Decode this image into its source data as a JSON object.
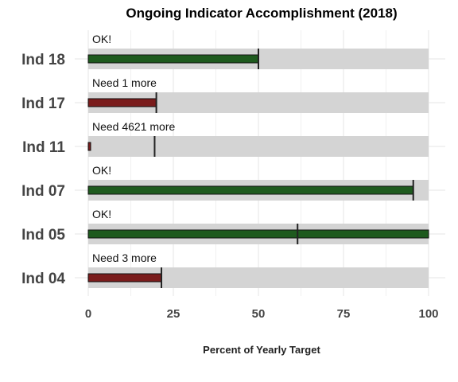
{
  "chart_data": {
    "type": "bar",
    "title": "Ongoing Indicator Accomplishment (2018)",
    "xlabel": "Percent of Yearly Target",
    "ylabel": "",
    "xlim": [
      0,
      100
    ],
    "x_ticks": [
      "0",
      "25",
      "50",
      "75",
      "100"
    ],
    "grid": true,
    "categories": [
      "Ind 18",
      "Ind 17",
      "Ind 11",
      "Ind 07",
      "Ind 05",
      "Ind 04"
    ],
    "values": [
      50,
      20,
      0.7,
      95.5,
      100,
      21.5
    ],
    "markers": [
      50,
      20,
      19.5,
      95.5,
      61.5,
      21.5
    ],
    "labels": [
      "OK!",
      "Need 1 more",
      "Need 4621 more",
      "OK!",
      "OK!",
      "Need 3 more"
    ],
    "status": [
      "ok",
      "behind",
      "behind",
      "ok",
      "ok",
      "behind"
    ],
    "colors": {
      "ok": "#1e5a1e",
      "behind": "#7a1c1c",
      "track": "#d4d4d4",
      "marker": "#222222",
      "grid": "#e6e6e6"
    }
  }
}
